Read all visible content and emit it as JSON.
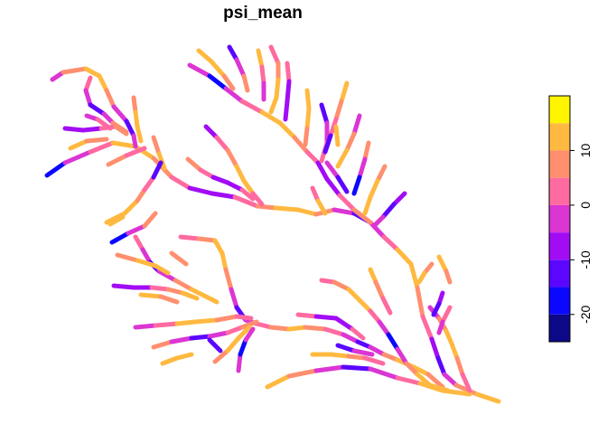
{
  "map": {
    "title": "psi_mean"
  },
  "legend": {
    "breaks": [
      -25,
      -20,
      -15,
      -10,
      -5,
      0,
      5,
      10,
      15,
      20
    ],
    "colors": [
      "#0D0887",
      "#0C08FF",
      "#5B06FF",
      "#A20CF5",
      "#DB35D4",
      "#FF6AA0",
      "#FF8F6E",
      "#FFB940",
      "#FFF500"
    ],
    "ticks": [
      {
        "value": -20,
        "label": "-20"
      },
      {
        "value": -10,
        "label": "-10"
      },
      {
        "value": 0,
        "label": "0"
      },
      {
        "value": 10,
        "label": "10"
      }
    ]
  }
}
